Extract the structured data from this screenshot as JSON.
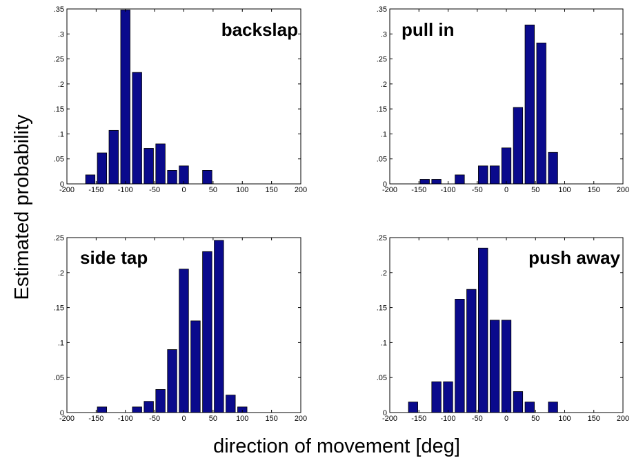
{
  "figure": {
    "ylabel": "Estimated probability",
    "xlabel": "direction of movement [deg]"
  },
  "colors": {
    "bar_fill": "#0a0a8c",
    "bar_edge": "#000000",
    "axes": "#000000",
    "background": "#ffffff"
  },
  "chart_data": [
    {
      "type": "bar",
      "title": "backslap",
      "title_position": "top-right",
      "xlim": [
        -200,
        200
      ],
      "ylim": [
        0,
        0.35
      ],
      "xticks": [
        -200,
        -150,
        -100,
        -50,
        0,
        50,
        100,
        150,
        200
      ],
      "yticks": [
        0,
        0.05,
        0.1,
        0.15,
        0.2,
        0.25,
        0.3,
        0.35
      ],
      "grid": false,
      "x": [
        -160,
        -140,
        -120,
        -100,
        -80,
        -60,
        -40,
        -20,
        0,
        20,
        40,
        60,
        80,
        100,
        120,
        140,
        160,
        180
      ],
      "values": [
        0.018,
        0.062,
        0.107,
        0.348,
        0.223,
        0.071,
        0.08,
        0.027,
        0.036,
        0.0,
        0.027,
        0,
        0,
        0,
        0,
        0,
        0,
        0
      ]
    },
    {
      "type": "bar",
      "title": "pull in",
      "title_position": "top-left",
      "xlim": [
        -200,
        200
      ],
      "ylim": [
        0,
        0.35
      ],
      "xticks": [
        -200,
        -150,
        -100,
        -50,
        0,
        50,
        100,
        150,
        200
      ],
      "yticks": [
        0,
        0.05,
        0.1,
        0.15,
        0.2,
        0.25,
        0.3,
        0.35
      ],
      "grid": false,
      "x": [
        -180,
        -160,
        -140,
        -120,
        -100,
        -80,
        -60,
        -40,
        -20,
        0,
        20,
        40,
        60,
        80,
        100,
        120,
        140,
        160,
        180
      ],
      "values": [
        0,
        0,
        0.009,
        0.009,
        0,
        0.018,
        0,
        0.036,
        0.036,
        0.072,
        0.153,
        0.318,
        0.282,
        0.063,
        0,
        0,
        0,
        0,
        0
      ]
    },
    {
      "type": "bar",
      "title": "side tap",
      "title_position": "top-left",
      "xlim": [
        -200,
        200
      ],
      "ylim": [
        0,
        0.25
      ],
      "xticks": [
        -200,
        -150,
        -100,
        -50,
        0,
        50,
        100,
        150,
        200
      ],
      "yticks": [
        0,
        0.05,
        0.1,
        0.15,
        0.2,
        0.25
      ],
      "grid": false,
      "x": [
        -180,
        -160,
        -140,
        -120,
        -100,
        -80,
        -60,
        -40,
        -20,
        0,
        20,
        40,
        60,
        80,
        100,
        120,
        140,
        160,
        180
      ],
      "values": [
        0,
        0,
        0.008,
        0,
        0,
        0.008,
        0.016,
        0.033,
        0.09,
        0.205,
        0.131,
        0.23,
        0.246,
        0.025,
        0.008,
        0,
        0,
        0,
        0
      ]
    },
    {
      "type": "bar",
      "title": "push away",
      "title_position": "top-right",
      "xlim": [
        -200,
        200
      ],
      "ylim": [
        0,
        0.25
      ],
      "xticks": [
        -200,
        -150,
        -100,
        -50,
        0,
        50,
        100,
        150,
        200
      ],
      "yticks": [
        0,
        0.05,
        0.1,
        0.15,
        0.2,
        0.25
      ],
      "grid": false,
      "x": [
        -180,
        -160,
        -140,
        -120,
        -100,
        -80,
        -60,
        -40,
        -20,
        0,
        20,
        40,
        60,
        80,
        100,
        120,
        140,
        160,
        180
      ],
      "values": [
        0,
        0.015,
        0,
        0.044,
        0.044,
        0.162,
        0.176,
        0.235,
        0.132,
        0.132,
        0.03,
        0.015,
        0,
        0.015,
        0,
        0,
        0,
        0,
        0
      ]
    }
  ]
}
